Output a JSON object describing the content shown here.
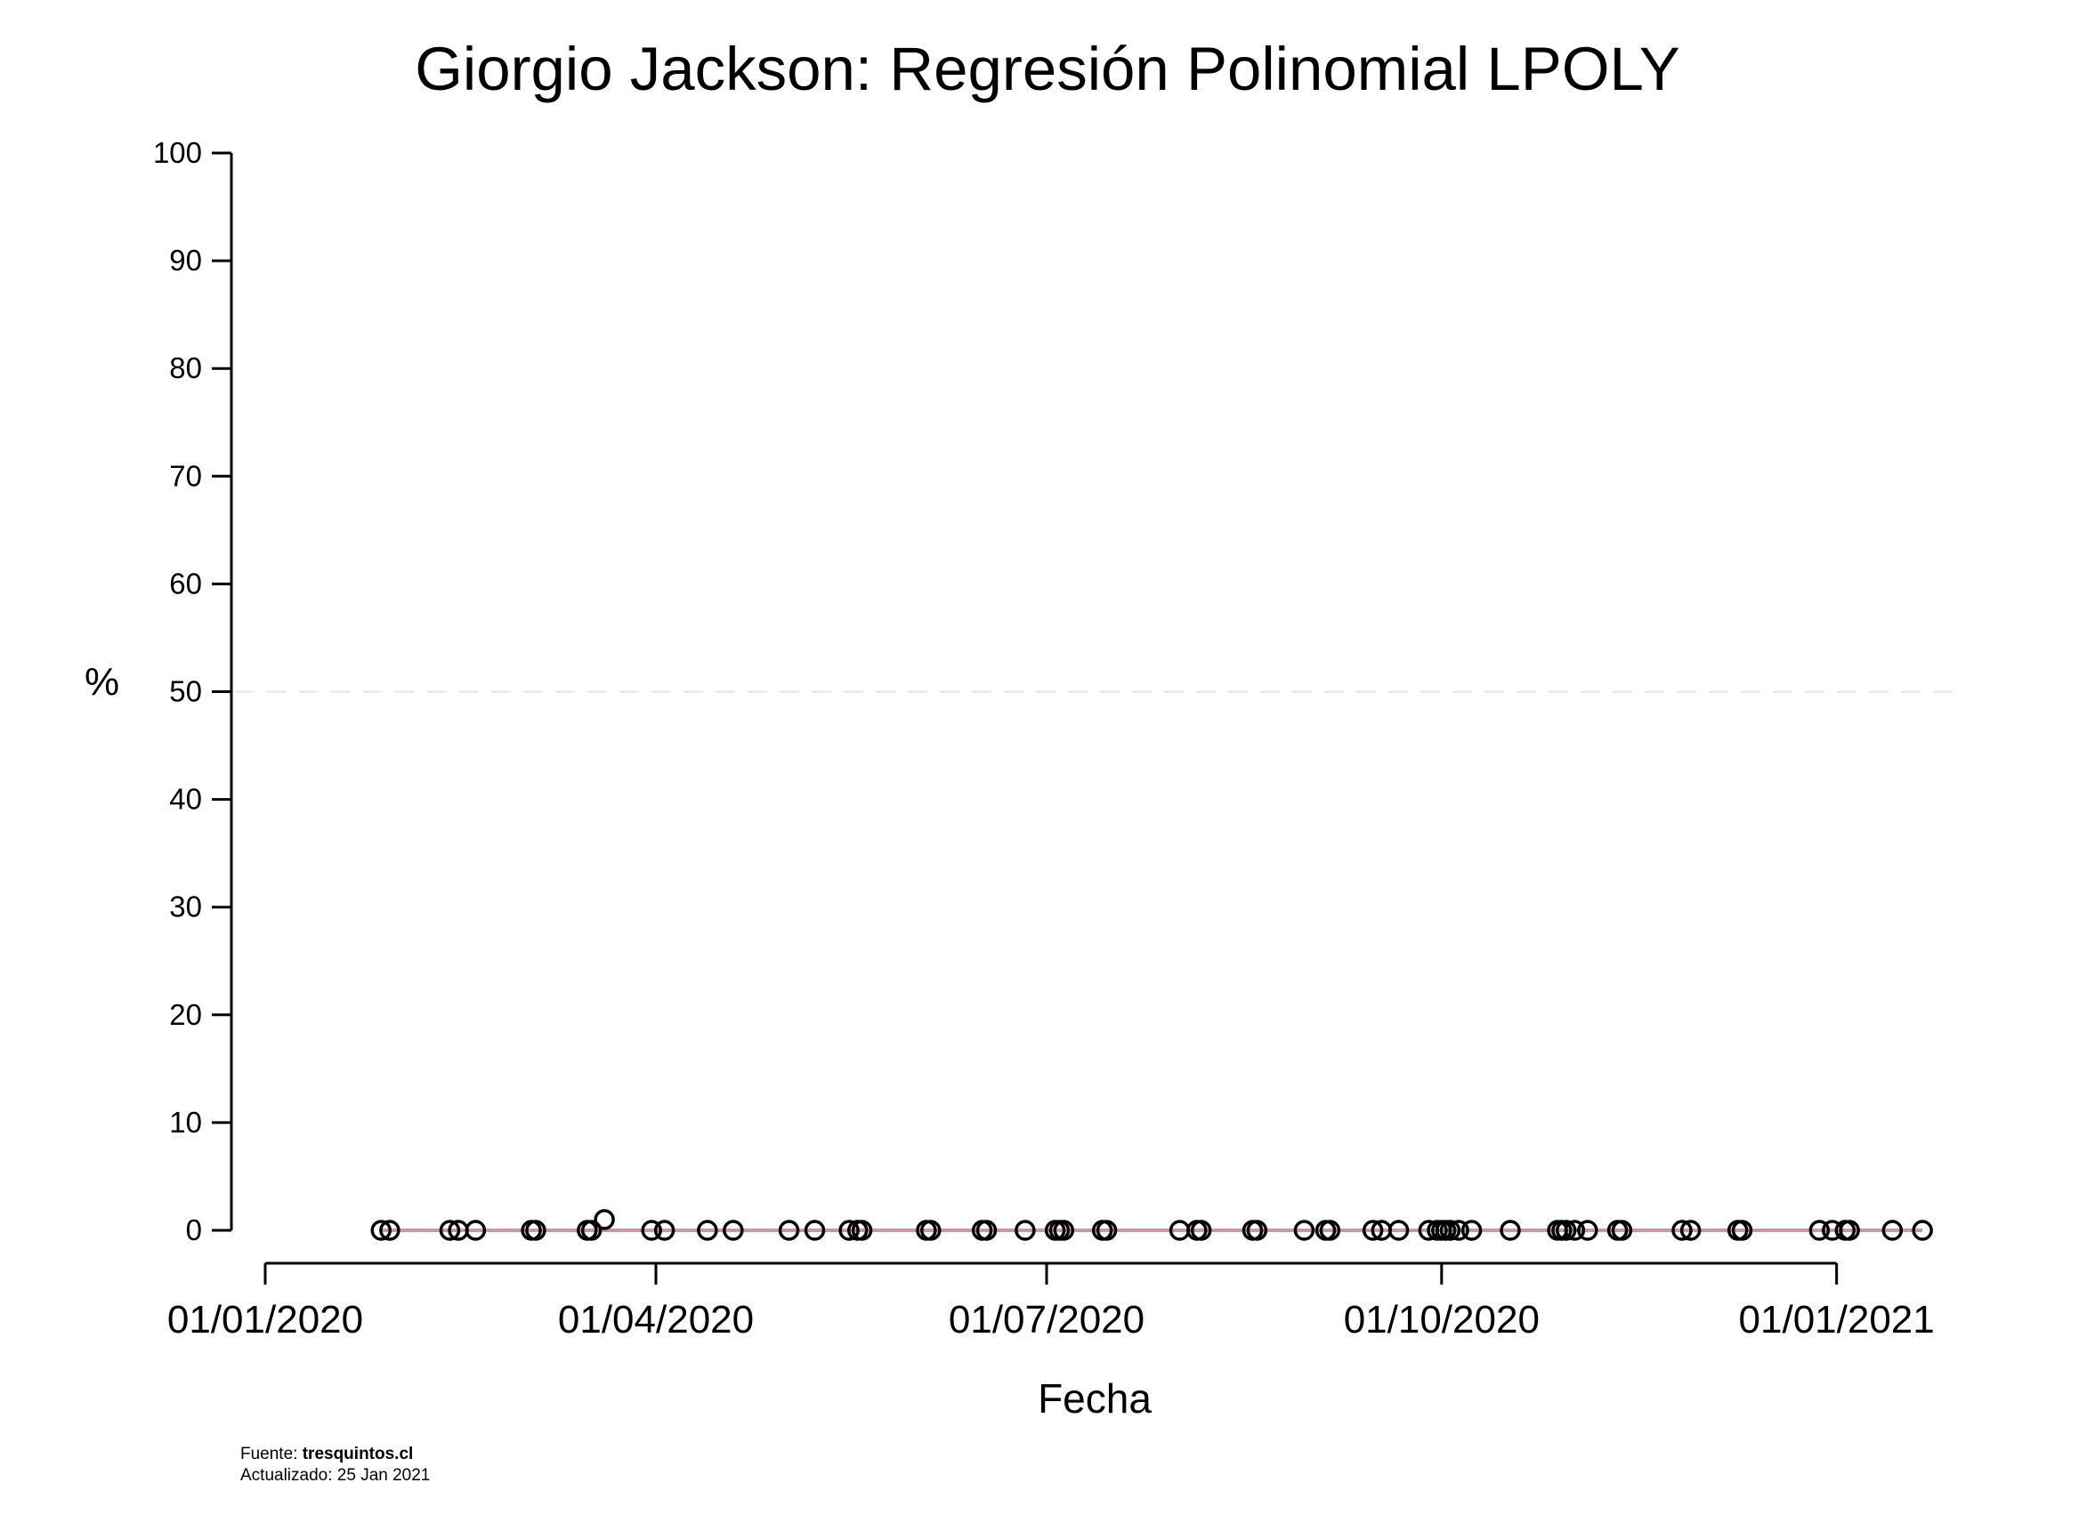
{
  "chart_data": {
    "type": "scatter",
    "title": "Giorgio Jackson: Regresión Polinomial LPOLY",
    "xlabel": "Fecha",
    "ylabel": "%",
    "ylim": [
      0,
      100
    ],
    "y_ticks": [
      "0",
      "10",
      "20",
      "30",
      "40",
      "50",
      "60",
      "70",
      "80",
      "90",
      "100"
    ],
    "xlim": [
      "2020-01-01",
      "2021-01-23"
    ],
    "x_ticks": [
      {
        "date": "2020-01-01",
        "label": "01/01/2020"
      },
      {
        "date": "2020-04-01",
        "label": "01/04/2020"
      },
      {
        "date": "2020-07-01",
        "label": "01/07/2020"
      },
      {
        "date": "2020-10-01",
        "label": "01/10/2020"
      },
      {
        "date": "2021-01-01",
        "label": "01/01/2021"
      }
    ],
    "reference_line": {
      "y": 50,
      "style": "dashed",
      "color": "#e6e6e6"
    },
    "fit_line": {
      "color": "#c99a9a",
      "y": 0
    },
    "point_color": "#000000",
    "points": [
      {
        "x": "2020-01-28",
        "y": 0
      },
      {
        "x": "2020-01-30",
        "y": 0
      },
      {
        "x": "2020-02-13",
        "y": 0
      },
      {
        "x": "2020-02-15",
        "y": 0
      },
      {
        "x": "2020-02-19",
        "y": 0
      },
      {
        "x": "2020-03-03",
        "y": 0
      },
      {
        "x": "2020-03-04",
        "y": 0
      },
      {
        "x": "2020-03-16",
        "y": 0
      },
      {
        "x": "2020-03-17",
        "y": 0
      },
      {
        "x": "2020-03-20",
        "y": 1
      },
      {
        "x": "2020-03-31",
        "y": 0
      },
      {
        "x": "2020-04-03",
        "y": 0
      },
      {
        "x": "2020-04-13",
        "y": 0
      },
      {
        "x": "2020-04-19",
        "y": 0
      },
      {
        "x": "2020-05-02",
        "y": 0
      },
      {
        "x": "2020-05-08",
        "y": 0
      },
      {
        "x": "2020-05-16",
        "y": 0
      },
      {
        "x": "2020-05-18",
        "y": 0
      },
      {
        "x": "2020-05-19",
        "y": 0
      },
      {
        "x": "2020-06-03",
        "y": 0
      },
      {
        "x": "2020-06-04",
        "y": 0
      },
      {
        "x": "2020-06-16",
        "y": 0
      },
      {
        "x": "2020-06-17",
        "y": 0
      },
      {
        "x": "2020-06-26",
        "y": 0
      },
      {
        "x": "2020-07-03",
        "y": 0
      },
      {
        "x": "2020-07-04",
        "y": 0
      },
      {
        "x": "2020-07-05",
        "y": 0
      },
      {
        "x": "2020-07-14",
        "y": 0
      },
      {
        "x": "2020-07-15",
        "y": 0
      },
      {
        "x": "2020-08-01",
        "y": 0
      },
      {
        "x": "2020-08-05",
        "y": 0
      },
      {
        "x": "2020-08-06",
        "y": 0
      },
      {
        "x": "2020-08-18",
        "y": 0
      },
      {
        "x": "2020-08-19",
        "y": 0
      },
      {
        "x": "2020-08-30",
        "y": 0
      },
      {
        "x": "2020-09-04",
        "y": 0
      },
      {
        "x": "2020-09-05",
        "y": 0
      },
      {
        "x": "2020-09-15",
        "y": 0
      },
      {
        "x": "2020-09-17",
        "y": 0
      },
      {
        "x": "2020-09-21",
        "y": 0
      },
      {
        "x": "2020-09-28",
        "y": 0
      },
      {
        "x": "2020-09-30",
        "y": 0
      },
      {
        "x": "2020-10-01",
        "y": 0
      },
      {
        "x": "2020-10-02",
        "y": 0
      },
      {
        "x": "2020-10-03",
        "y": 0
      },
      {
        "x": "2020-10-05",
        "y": 0
      },
      {
        "x": "2020-10-08",
        "y": 0
      },
      {
        "x": "2020-10-17",
        "y": 0
      },
      {
        "x": "2020-10-28",
        "y": 0
      },
      {
        "x": "2020-10-29",
        "y": 0
      },
      {
        "x": "2020-10-30",
        "y": 0
      },
      {
        "x": "2020-11-01",
        "y": 0
      },
      {
        "x": "2020-11-04",
        "y": 0
      },
      {
        "x": "2020-11-11",
        "y": 0
      },
      {
        "x": "2020-11-12",
        "y": 0
      },
      {
        "x": "2020-11-26",
        "y": 0
      },
      {
        "x": "2020-11-28",
        "y": 0
      },
      {
        "x": "2020-12-09",
        "y": 0
      },
      {
        "x": "2020-12-10",
        "y": 0
      },
      {
        "x": "2020-12-28",
        "y": 0
      },
      {
        "x": "2020-12-31",
        "y": 0
      },
      {
        "x": "2021-01-03",
        "y": 0
      },
      {
        "x": "2021-01-04",
        "y": 0
      },
      {
        "x": "2021-01-14",
        "y": 0
      },
      {
        "x": "2021-01-21",
        "y": 0
      }
    ]
  },
  "footer": {
    "source_prefix": "Fuente: ",
    "source_name": "tresquintos.cl",
    "updated": "Actualizado: 25 Jan 2021"
  }
}
